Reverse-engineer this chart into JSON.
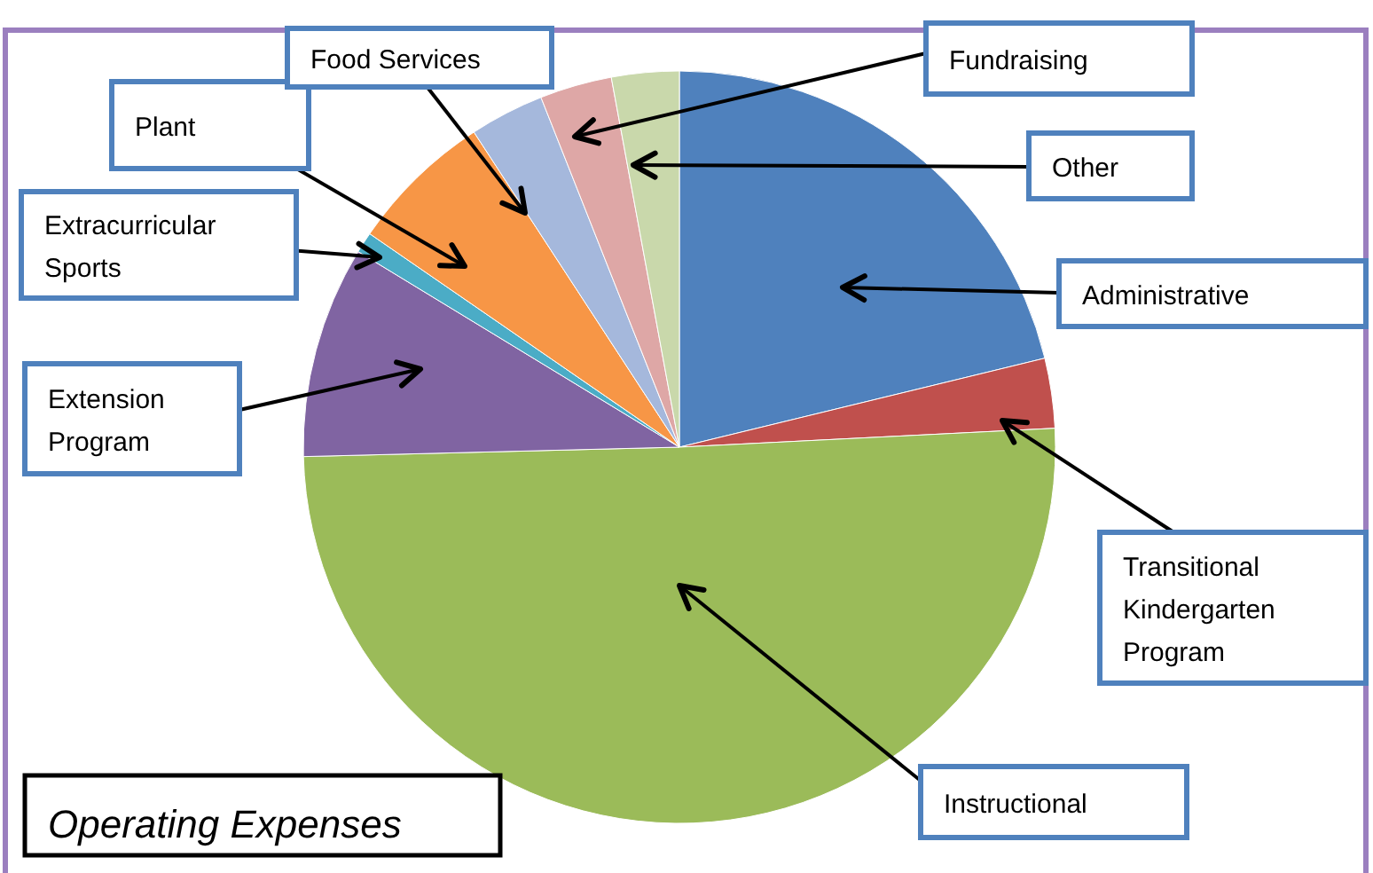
{
  "chart_data": {
    "type": "pie",
    "title": "Operating Expenses",
    "categories": [
      "Administrative",
      "Transitional Kindergarten Program",
      "Instructional",
      "Extension Program",
      "Extracurricular Sports",
      "Plant",
      "Food Services",
      "Fundraising",
      "Other"
    ],
    "values": [
      21.2,
      3.0,
      50.4,
      9.1,
      0.9,
      6.2,
      3.2,
      3.1,
      2.9
    ],
    "colors": [
      "#4f81bd",
      "#c0504d",
      "#9bbb59",
      "#8064a2",
      "#4bacc6",
      "#f79646",
      "#a5b8dc",
      "#dea7a6",
      "#c9d8ab"
    ]
  }
}
